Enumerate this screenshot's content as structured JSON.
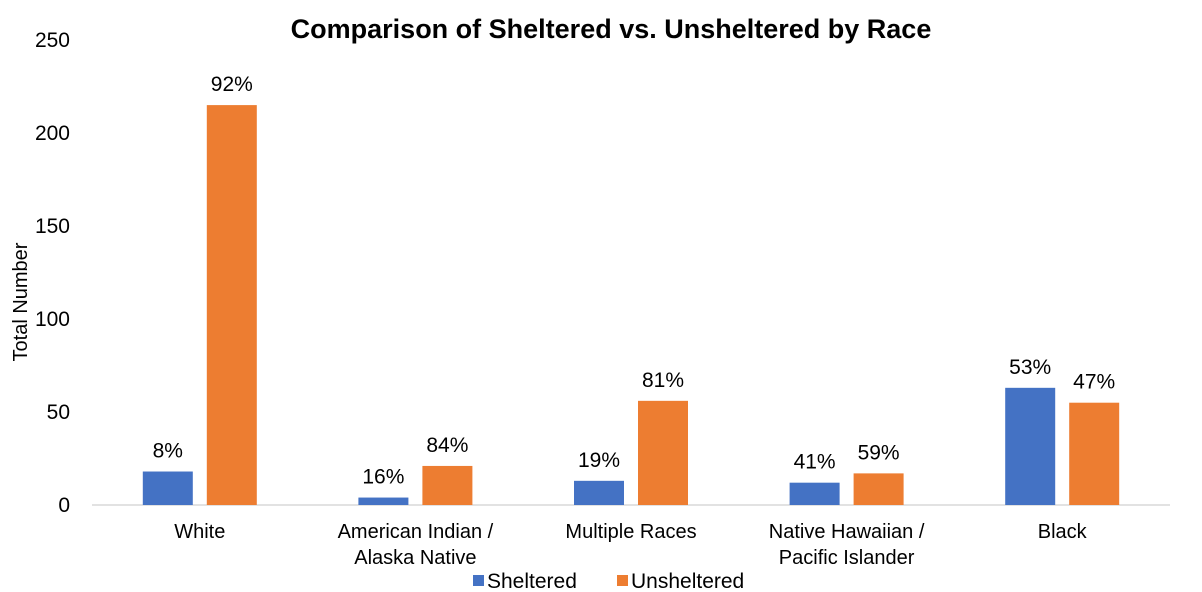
{
  "chart_data": {
    "type": "bar",
    "title": "Comparison of Sheltered vs. Unsheltered by Race",
    "xlabel": "",
    "ylabel": "Total Number",
    "ylim": [
      0,
      250
    ],
    "yticks": [
      0,
      50,
      100,
      150,
      200,
      250
    ],
    "categories": [
      [
        "White"
      ],
      [
        "American Indian /",
        "Alaska Native"
      ],
      [
        "Multiple Races"
      ],
      [
        "Native Hawaiian /",
        "Pacific Islander"
      ],
      [
        "Black"
      ]
    ],
    "series": [
      {
        "name": "Sheltered",
        "color": "#4472c4",
        "values": [
          18,
          4,
          13,
          12,
          63
        ],
        "labels": [
          "8%",
          "16%",
          "19%",
          "41%",
          "53%"
        ]
      },
      {
        "name": "Unsheltered",
        "color": "#ed7d31",
        "values": [
          215,
          21,
          56,
          17,
          55
        ],
        "labels": [
          "92%",
          "84%",
          "81%",
          "59%",
          "47%"
        ]
      }
    ],
    "legend_position": "bottom",
    "grid": false
  }
}
